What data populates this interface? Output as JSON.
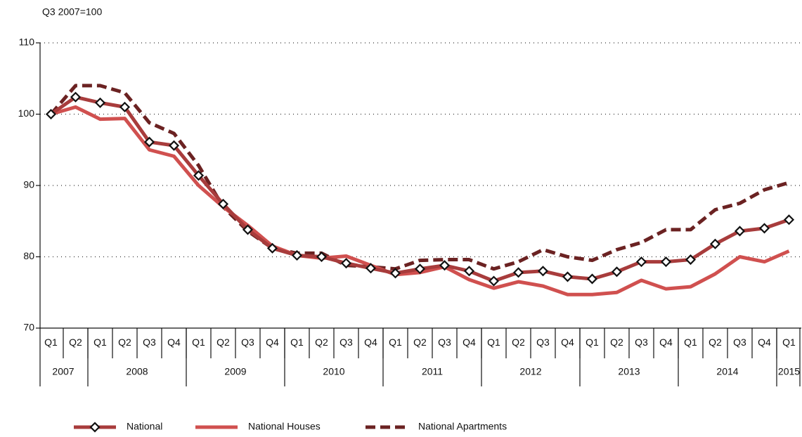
{
  "chart_data": {
    "type": "line",
    "ylabel": "Q3 2007=100",
    "categories": [
      "Q1",
      "Q2",
      "Q1",
      "Q2",
      "Q3",
      "Q4",
      "Q1",
      "Q2",
      "Q3",
      "Q4",
      "Q1",
      "Q2",
      "Q3",
      "Q4",
      "Q1",
      "Q2",
      "Q3",
      "Q4",
      "Q1",
      "Q2",
      "Q3",
      "Q4",
      "Q1",
      "Q2",
      "Q3",
      "Q4",
      "Q1",
      "Q2",
      "Q3",
      "Q4",
      "Q1"
    ],
    "x_groups": [
      {
        "label": "2007",
        "size": 2
      },
      {
        "label": "2008",
        "size": 4
      },
      {
        "label": "2009",
        "size": 4
      },
      {
        "label": "2010",
        "size": 4
      },
      {
        "label": "2011",
        "size": 4
      },
      {
        "label": "2012",
        "size": 4
      },
      {
        "label": "2013",
        "size": 4
      },
      {
        "label": "2014",
        "size": 4
      },
      {
        "label": "2015",
        "size": 1
      }
    ],
    "ylim": [
      70,
      110
    ],
    "yticks": [
      70,
      80,
      90,
      100,
      110
    ],
    "grid": true,
    "series": [
      {
        "name": "National",
        "color": "#a83c3c",
        "style": "solid",
        "marker": "diamond",
        "values": [
          100,
          102.4,
          101.6,
          101.0,
          96.1,
          95.6,
          91.4,
          87.4,
          83.8,
          81.2,
          80.2,
          80.0,
          79.1,
          78.4,
          77.7,
          78.3,
          78.8,
          78.0,
          76.6,
          77.8,
          78.0,
          77.2,
          76.9,
          77.9,
          79.3,
          79.3,
          79.6,
          81.8,
          83.6,
          84.0,
          85.2
        ]
      },
      {
        "name": "National Houses",
        "color": "#d0504f",
        "style": "solid",
        "values": [
          100,
          101.0,
          99.3,
          99.4,
          95.0,
          94.1,
          90.0,
          87.0,
          84.4,
          81.5,
          80.2,
          79.8,
          80.1,
          78.8,
          77.5,
          77.8,
          78.6,
          76.8,
          75.6,
          76.5,
          75.9,
          74.7,
          74.7,
          75.0,
          76.7,
          75.5,
          75.8,
          77.6,
          80.0,
          79.3,
          80.8
        ]
      },
      {
        "name": "National Apartments",
        "color": "#6b2222",
        "style": "dashed",
        "values": [
          100,
          104.0,
          104.0,
          103.0,
          98.8,
          97.3,
          92.8,
          87.0,
          83.6,
          81.2,
          80.5,
          80.5,
          78.8,
          78.6,
          78.3,
          79.5,
          79.6,
          79.6,
          78.3,
          79.3,
          81.0,
          80.0,
          79.5,
          81.0,
          82.0,
          83.8,
          83.8,
          86.6,
          87.5,
          89.4,
          90.4
        ]
      }
    ],
    "legend": "bottom"
  }
}
